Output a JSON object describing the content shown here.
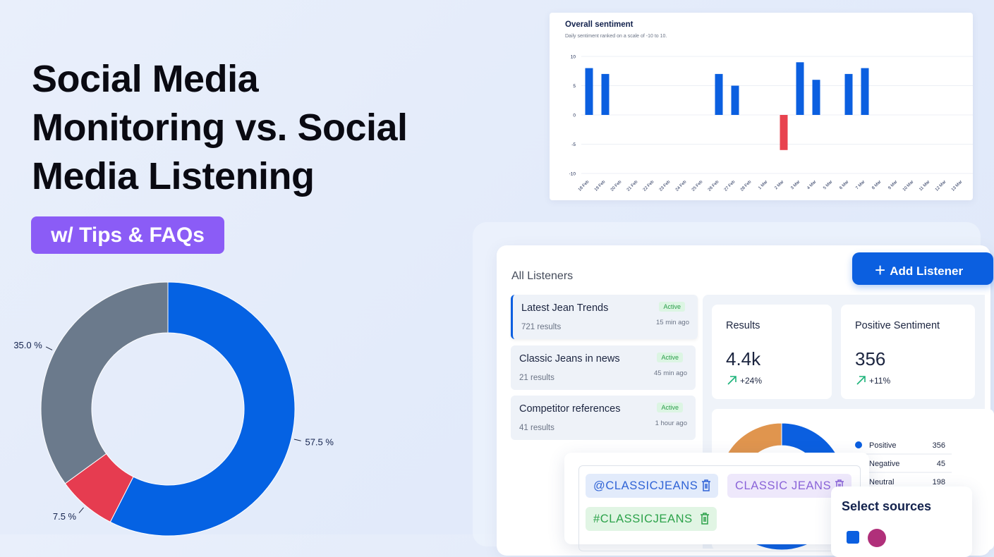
{
  "title_lines": [
    "Social Media",
    "Monitoring vs. Social",
    "Media Listening"
  ],
  "badge": "w/ Tips & FAQs",
  "chart_data": [
    {
      "type": "donut",
      "values": [
        57.5,
        7.5,
        35.0
      ],
      "value_labels": [
        "57.5 %",
        "7.5 %",
        "35.0 %"
      ],
      "colors": [
        "#0562e3",
        "#e63c50",
        "#6b7a8c"
      ]
    },
    {
      "type": "bar",
      "title": "Overall sentiment",
      "subtitle": "Daily sentiment ranked on a scale of -10 to 10.",
      "categories": [
        "18 Feb",
        "19 Feb",
        "20 Feb",
        "21 Feb",
        "22 Feb",
        "23 Feb",
        "24 Feb",
        "25 Feb",
        "26 Feb",
        "27 Feb",
        "28 Feb",
        "1 Mar",
        "2 Mar",
        "3 Mar",
        "4 Mar",
        "5 Mar",
        "6 Mar",
        "7 Mar",
        "8 Mar",
        "9 Mar",
        "10 Mar",
        "11 Mar",
        "12 Mar",
        "13 Mar"
      ],
      "values": [
        8,
        7,
        0,
        0,
        0,
        0,
        0,
        0,
        7,
        5,
        0,
        0,
        -6,
        9,
        6,
        0,
        7,
        8,
        0,
        0,
        0,
        0,
        0,
        0
      ],
      "color": "#0b5fe0",
      "negative_color": "#e8434f",
      "ylim": [
        -10,
        10
      ],
      "yticks": [
        -10,
        -5,
        0,
        5,
        10
      ],
      "grid": true
    },
    {
      "type": "donut",
      "categories": [
        "Positive",
        "Negative",
        "Neutral"
      ],
      "values": [
        356,
        45,
        198
      ],
      "colors": [
        "#0b5fe0",
        "#6b7a8c",
        "#e0954e"
      ]
    }
  ],
  "listeners": {
    "heading": "All Listeners",
    "add_button": "Add Listener",
    "items": [
      {
        "name": "Latest Jean Trends",
        "status": "Active",
        "results": "721 results",
        "updated": "15 min ago"
      },
      {
        "name": "Classic Jeans in news",
        "status": "Active",
        "results": "21 results",
        "updated": "45 min ago"
      },
      {
        "name": "Competitor references",
        "status": "Active",
        "results": "41 results",
        "updated": "1 hour ago"
      }
    ]
  },
  "stats": [
    {
      "label": "Results",
      "value": "4.4k",
      "change": "+24%"
    },
    {
      "label": "Positive Sentiment",
      "value": "356",
      "change": "+11%"
    }
  ],
  "keywords": [
    "@CLASSICJEANS",
    "CLASSIC JEANS",
    "#CLASSICJEANS"
  ],
  "sources": {
    "title": "Select sources"
  }
}
